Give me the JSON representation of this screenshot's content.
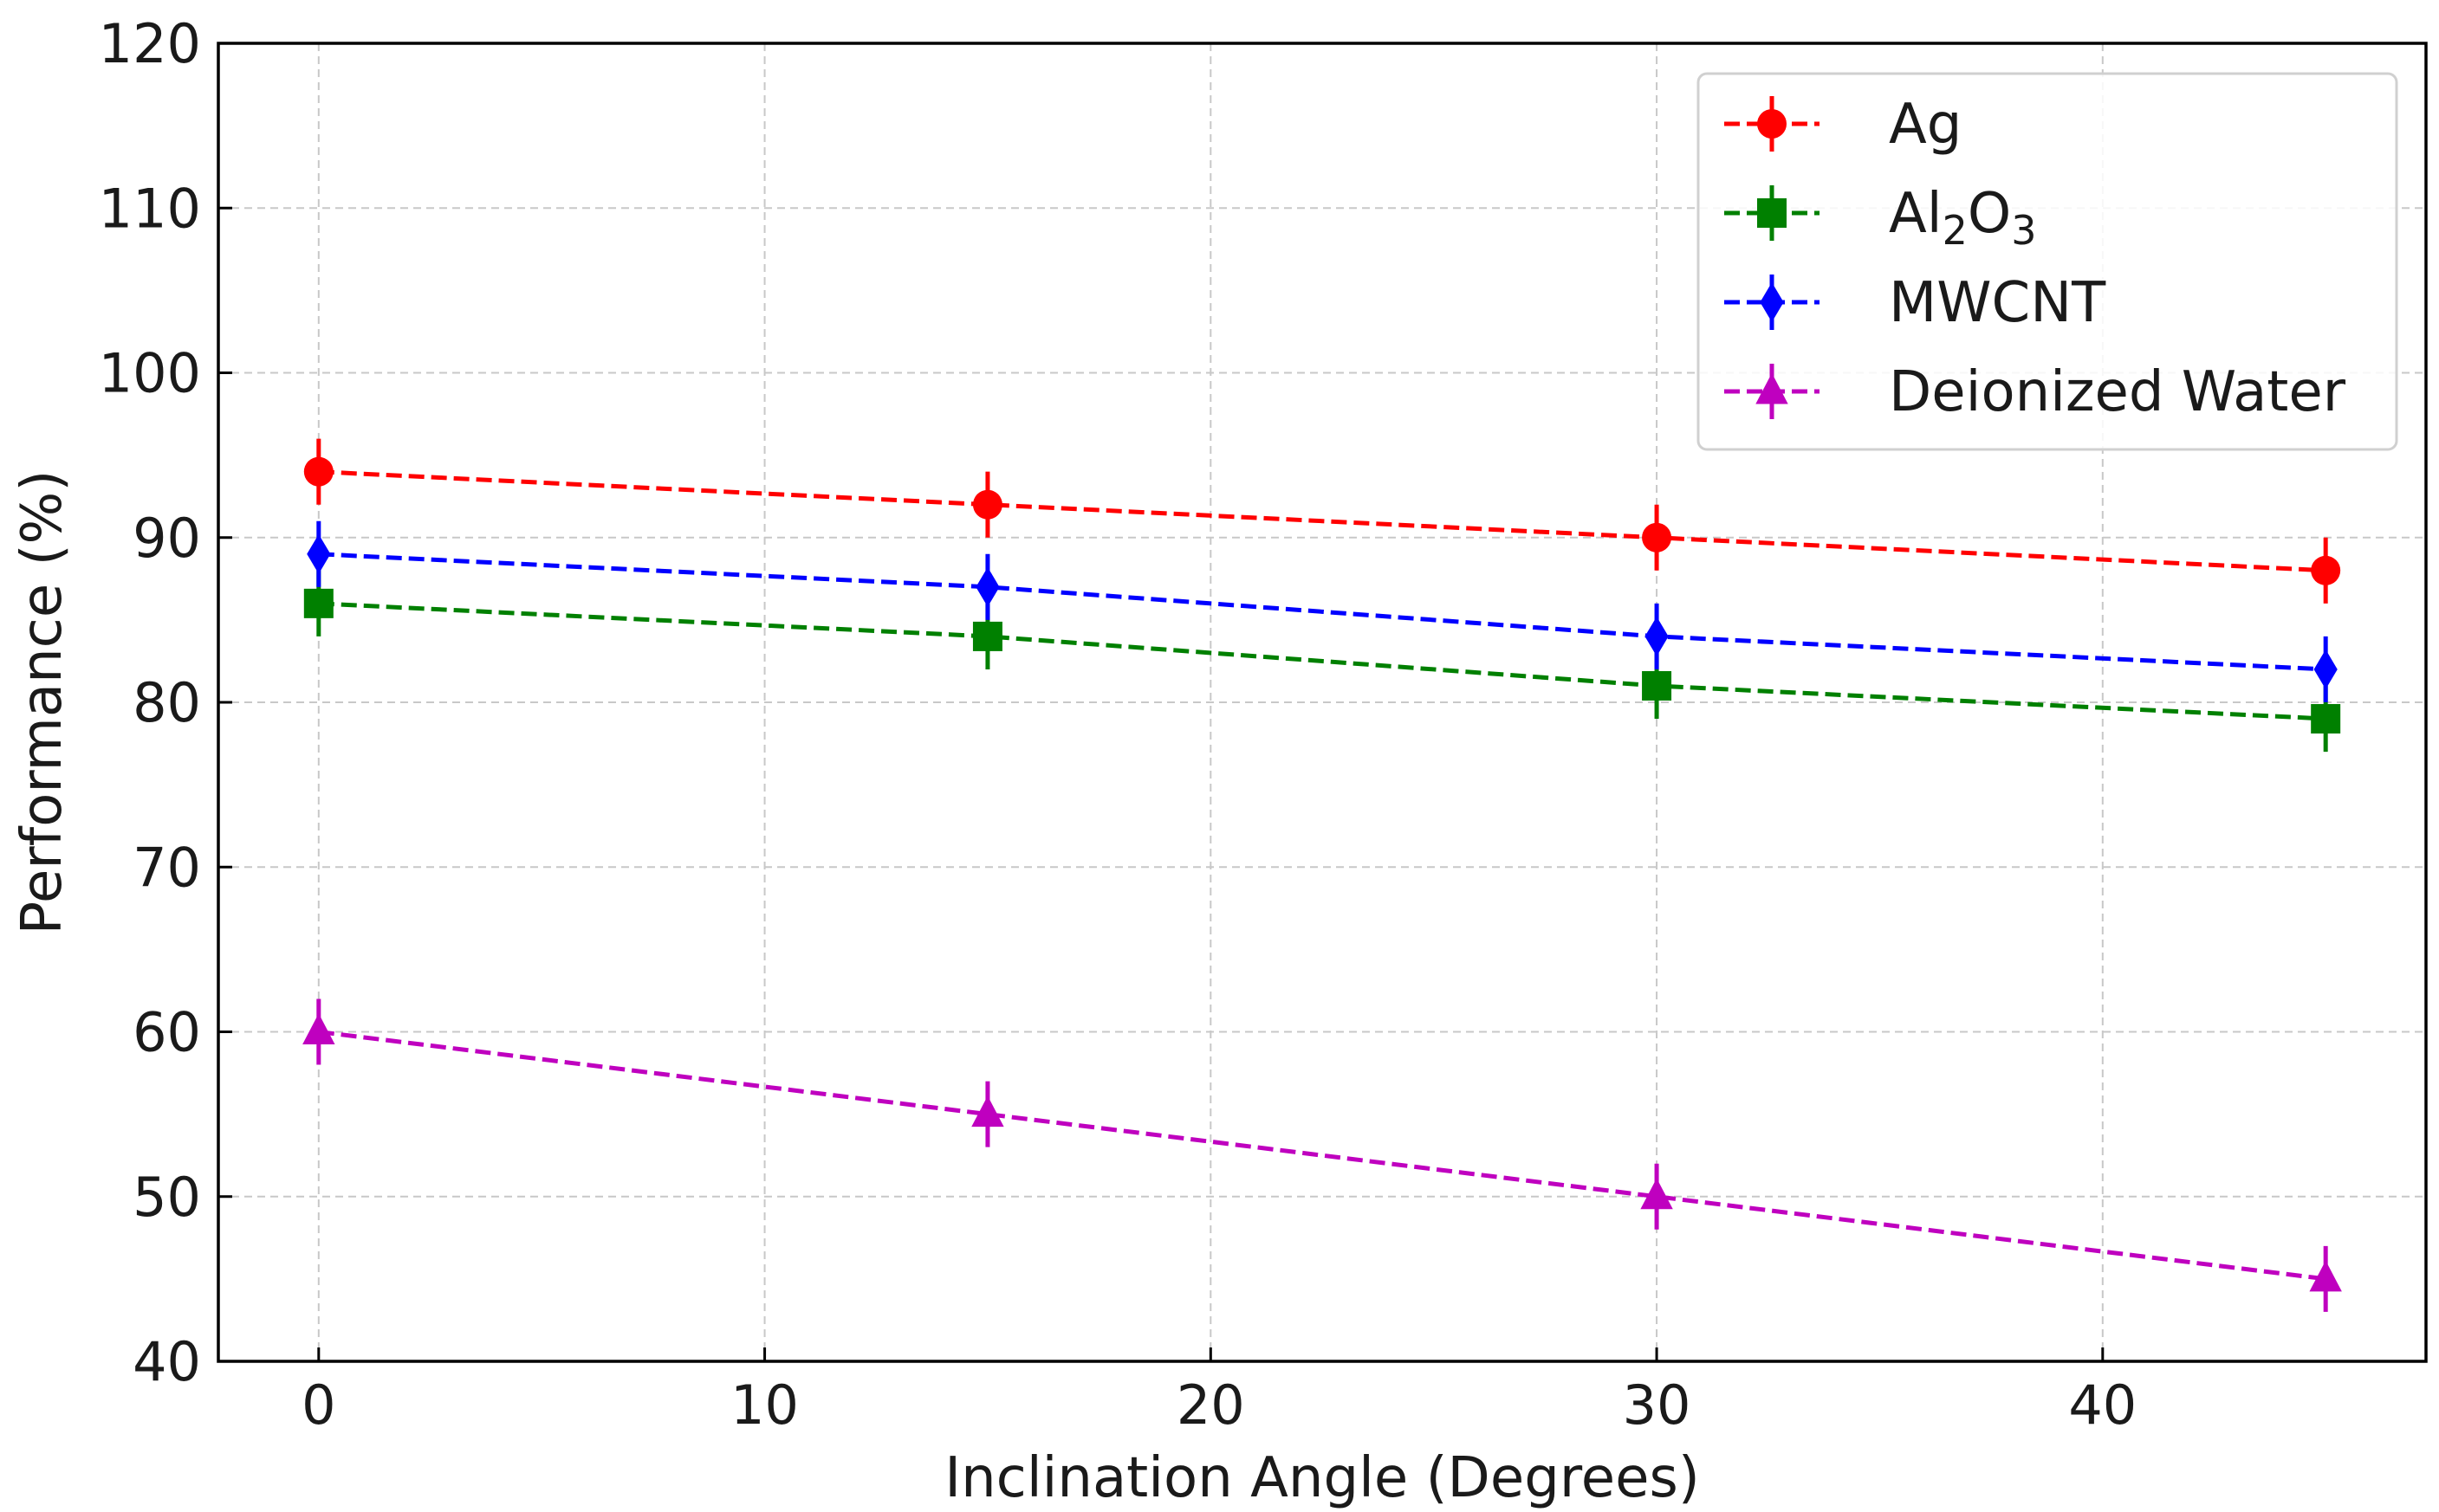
{
  "chart_data": {
    "type": "line",
    "title": "",
    "xlabel": "Inclination Angle (Degrees)",
    "ylabel": "Performance (%)",
    "xlim": [
      -2.25,
      47.25
    ],
    "ylim": [
      40,
      120
    ],
    "xticks": [
      0,
      10,
      20,
      30,
      40
    ],
    "yticks": [
      40,
      50,
      60,
      70,
      80,
      90,
      100,
      110,
      120
    ],
    "grid": true,
    "legend_position": "top-right",
    "x": [
      0,
      15,
      30,
      45
    ],
    "series": [
      {
        "name": "Ag",
        "sub_name": "",
        "name_parts": [
          "Ag"
        ],
        "values": [
          94,
          92,
          90,
          88
        ],
        "error": [
          2,
          2,
          2,
          2
        ],
        "color": "#ff0000",
        "marker": "circle"
      },
      {
        "name": "Al2O3",
        "name_parts": [
          "Al",
          "2",
          "O",
          "3"
        ],
        "values": [
          86,
          84,
          81,
          79
        ],
        "error": [
          2,
          2,
          2,
          2
        ],
        "color": "#008000",
        "marker": "square"
      },
      {
        "name": "MWCNT",
        "name_parts": [
          "MWCNT"
        ],
        "values": [
          89,
          87,
          84,
          82
        ],
        "error": [
          2,
          2,
          2,
          2
        ],
        "color": "#0000ff",
        "marker": "diamond"
      },
      {
        "name": "Deionized Water",
        "name_parts": [
          "Deionized Water"
        ],
        "values": [
          60,
          55,
          50,
          45
        ],
        "error": [
          2,
          2,
          2,
          2
        ],
        "color": "#bf00bf",
        "marker": "triangle"
      }
    ]
  }
}
